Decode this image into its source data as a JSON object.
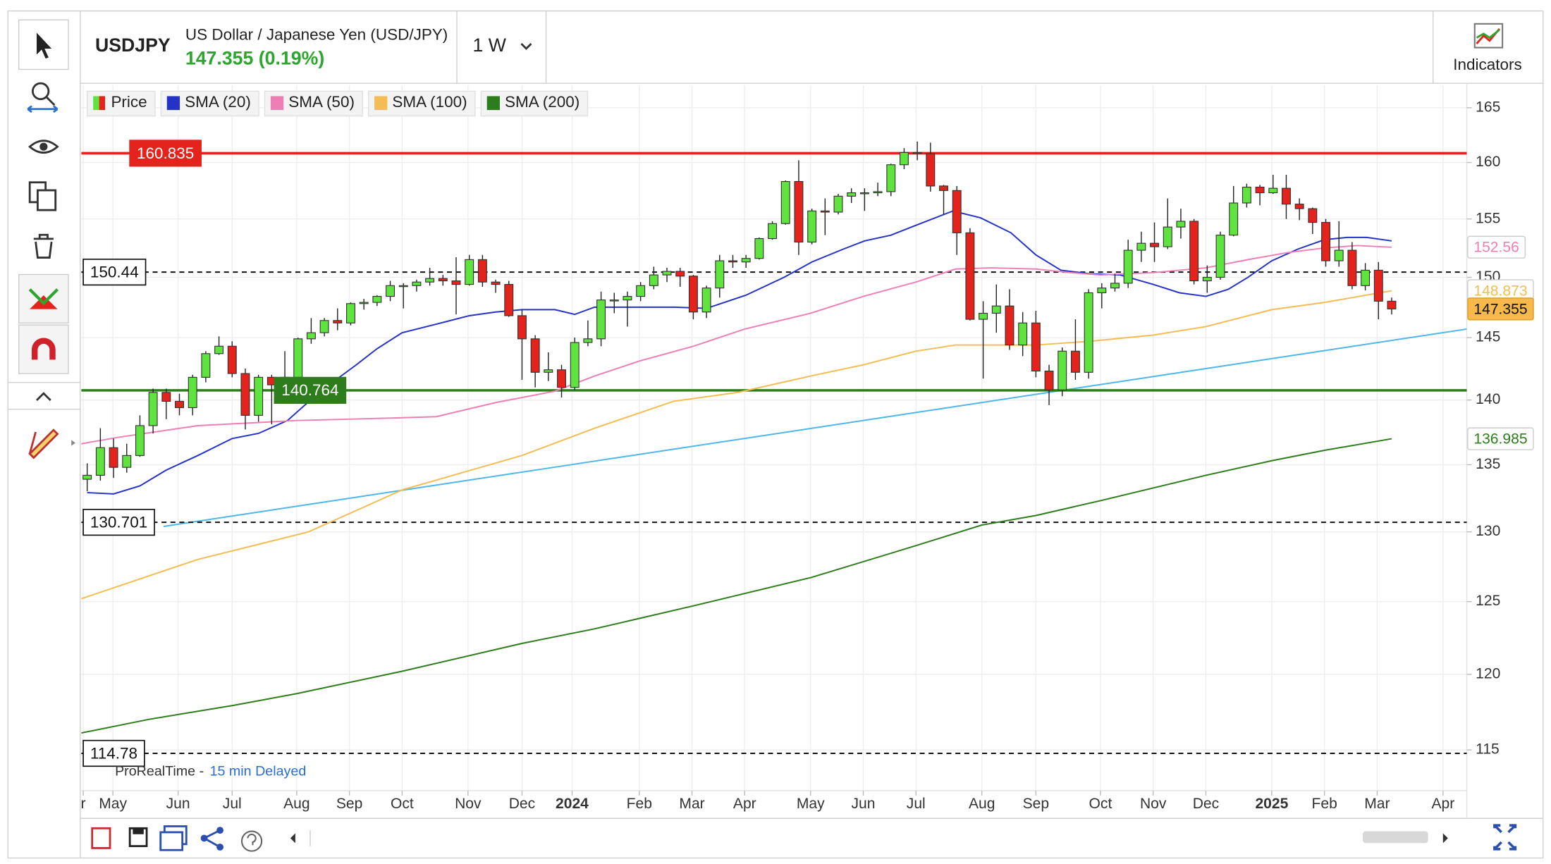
{
  "chart_data": {
    "type": "candlestick",
    "symbol": "USDJPY",
    "name": "US Dollar / Japanese Yen (USD/JPY)",
    "price_change": "147.355 (0.19%)",
    "interval": "1 W",
    "indicators_button": "Indicators",
    "price_legend": "Price",
    "source": "ProRealTime -",
    "delay": "15 min Delayed",
    "up_color": "#5fe33f",
    "down_color": "#e3231c",
    "log_scale": true,
    "grid": true,
    "ylim": [
      112.4,
      167.1
    ],
    "yticks": [
      115,
      120,
      125,
      130,
      135,
      140,
      145,
      150,
      155,
      160,
      165
    ],
    "xlim": [
      -0.45,
      104.7
    ],
    "xticks": [
      {
        "value": -0.3,
        "label": "r"
      },
      {
        "value": 1.95,
        "label": "May"
      },
      {
        "value": 6.9,
        "label": "Jun"
      },
      {
        "value": 11.0,
        "label": "Jul"
      },
      {
        "value": 15.9,
        "label": "Aug"
      },
      {
        "value": 19.9,
        "label": "Sep"
      },
      {
        "value": 23.9,
        "label": "Oct"
      },
      {
        "value": 28.9,
        "label": "Nov"
      },
      {
        "value": 33.0,
        "label": "Dec"
      },
      {
        "value": 36.8,
        "label": "2024"
      },
      {
        "value": 41.9,
        "label": "Feb"
      },
      {
        "value": 45.9,
        "label": "Mar"
      },
      {
        "value": 49.9,
        "label": "Apr"
      },
      {
        "value": 54.9,
        "label": "May"
      },
      {
        "value": 58.9,
        "label": "Jun"
      },
      {
        "value": 62.9,
        "label": "Jul"
      },
      {
        "value": 67.9,
        "label": "Aug"
      },
      {
        "value": 72.0,
        "label": "Sep"
      },
      {
        "value": 76.9,
        "label": "Oct"
      },
      {
        "value": 80.9,
        "label": "Nov"
      },
      {
        "value": 84.9,
        "label": "Dec"
      },
      {
        "value": 89.9,
        "label": "2025"
      },
      {
        "value": 93.9,
        "label": "Feb"
      },
      {
        "value": 97.9,
        "label": "Mar"
      },
      {
        "value": 102.9,
        "label": "Apr"
      }
    ],
    "open": [
      133.9,
      134.2,
      136.3,
      134.8,
      135.7,
      138.0,
      140.6,
      139.9,
      139.4,
      141.8,
      143.7,
      144.3,
      142.1,
      138.8,
      141.8,
      141.2,
      141.8,
      144.9,
      145.4,
      146.4,
      146.2,
      147.8,
      147.9,
      148.4,
      149.3,
      149.3,
      149.6,
      149.9,
      149.7,
      149.4,
      151.5,
      149.6,
      149.4,
      146.8,
      144.9,
      142.2,
      142.4,
      141.0,
      144.6,
      144.9,
      148.1,
      148.1,
      148.4,
      149.3,
      150.2,
      150.5,
      150.1,
      147.1,
      149.1,
      151.4,
      151.3,
      151.6,
      153.3,
      154.6,
      158.3,
      153.0,
      155.7,
      155.6,
      157.0,
      157.3,
      157.3,
      157.4,
      159.8,
      160.9,
      160.8,
      157.9,
      157.5,
      153.8,
      146.5,
      147.0,
      147.6,
      144.4,
      146.2,
      142.3,
      140.8,
      143.9,
      142.2,
      148.7,
      149.1,
      149.5,
      152.3,
      152.9,
      152.6,
      154.3,
      154.8,
      149.7,
      150.0,
      153.6,
      156.4,
      157.8,
      157.3,
      157.7,
      156.3,
      155.9,
      154.7,
      151.4,
      152.3,
      149.3,
      150.6,
      148.0
    ],
    "high": [
      135.1,
      137.8,
      137.0,
      136.6,
      138.8,
      140.9,
      140.9,
      140.5,
      142.0,
      143.9,
      145.1,
      144.7,
      142.5,
      142.0,
      142.0,
      143.9,
      145.0,
      146.6,
      146.6,
      147.4,
      147.9,
      148.2,
      148.5,
      149.7,
      149.5,
      149.8,
      150.8,
      150.2,
      151.7,
      151.9,
      151.9,
      149.8,
      149.7,
      147.3,
      145.2,
      143.8,
      142.8,
      145.0,
      146.4,
      148.8,
      148.7,
      148.8,
      149.6,
      150.9,
      150.8,
      150.8,
      150.2,
      149.3,
      151.9,
      151.9,
      151.9,
      153.4,
      154.8,
      158.4,
      160.2,
      155.9,
      156.8,
      157.2,
      157.7,
      157.7,
      158.2,
      159.9,
      161.3,
      161.9,
      161.8,
      158.0,
      157.9,
      154.2,
      148.0,
      149.4,
      149.0,
      147.1,
      147.2,
      142.8,
      144.2,
      146.5,
      149.0,
      149.5,
      150.3,
      153.2,
      153.9,
      154.7,
      156.8,
      155.9,
      155.0,
      151.0,
      153.9,
      157.9,
      158.1,
      158.0,
      158.9,
      158.9,
      156.8,
      156.0,
      155.0,
      154.8,
      153.0,
      151.2,
      151.3,
      148.3
    ],
    "low": [
      133.0,
      133.8,
      134.0,
      134.4,
      135.6,
      137.4,
      138.5,
      138.8,
      138.8,
      141.4,
      143.6,
      141.8,
      137.7,
      138.3,
      138.1,
      141.1,
      141.5,
      144.5,
      145.1,
      145.6,
      146.0,
      147.3,
      147.6,
      148.0,
      147.4,
      148.8,
      149.3,
      149.3,
      146.9,
      149.3,
      149.2,
      148.7,
      146.7,
      141.6,
      141.0,
      141.5,
      140.2,
      140.8,
      144.3,
      144.3,
      147.0,
      145.9,
      148.0,
      149.0,
      149.6,
      149.2,
      146.5,
      146.6,
      148.3,
      150.8,
      150.8,
      151.5,
      153.2,
      154.5,
      151.9,
      152.8,
      153.6,
      155.4,
      156.4,
      155.7,
      157.0,
      157.0,
      159.4,
      160.2,
      157.4,
      155.4,
      151.9,
      146.4,
      141.7,
      145.4,
      144.0,
      143.5,
      141.8,
      139.6,
      140.3,
      141.6,
      141.7,
      147.4,
      148.8,
      149.1,
      151.3,
      151.3,
      152.4,
      153.3,
      149.4,
      148.7,
      149.8,
      153.5,
      156.0,
      156.2,
      157.2,
      155.0,
      154.9,
      153.7,
      150.9,
      150.9,
      149.0,
      148.9,
      146.5,
      146.9
    ],
    "close": [
      134.2,
      136.3,
      134.8,
      135.7,
      138.0,
      140.6,
      139.9,
      139.4,
      141.8,
      143.7,
      144.3,
      142.1,
      138.8,
      141.8,
      141.2,
      141.8,
      144.9,
      145.4,
      146.4,
      146.2,
      147.8,
      147.9,
      148.4,
      149.3,
      149.3,
      149.6,
      149.9,
      149.7,
      149.4,
      151.5,
      149.6,
      149.4,
      146.8,
      144.9,
      142.2,
      142.4,
      141.0,
      144.6,
      144.9,
      148.1,
      148.1,
      148.4,
      149.3,
      150.2,
      150.5,
      150.1,
      147.1,
      149.1,
      151.4,
      151.3,
      151.6,
      153.3,
      154.6,
      158.3,
      153.0,
      155.7,
      155.6,
      157.0,
      157.3,
      157.3,
      157.4,
      159.8,
      160.9,
      160.8,
      157.9,
      157.5,
      153.8,
      146.5,
      147.0,
      147.6,
      144.4,
      146.2,
      142.3,
      140.8,
      143.9,
      142.2,
      148.7,
      149.1,
      149.5,
      152.3,
      152.9,
      152.6,
      154.3,
      154.8,
      149.7,
      150.0,
      153.6,
      156.4,
      157.8,
      157.3,
      157.7,
      156.3,
      155.9,
      154.7,
      151.4,
      152.3,
      149.3,
      150.6,
      148.0,
      147.355
    ],
    "last_badge_color": "#f6b94a",
    "series": [
      {
        "name": "SMA (20)",
        "color": "#2432c8",
        "badge": false,
        "x": [
          0,
          2,
          4,
          6,
          8.4,
          11,
          13,
          15.2,
          17.7,
          20.3,
          22,
          23.9,
          26.5,
          29,
          31,
          33,
          35.5,
          37,
          38.5,
          42,
          44.6,
          47,
          50,
          52.9,
          55,
          57.4,
          59,
          61,
          63,
          65.7,
          67.8,
          70.1,
          72,
          73.9,
          76.1,
          78.4,
          80.9,
          82.9,
          84.9,
          86.6,
          88.1,
          89.9,
          91.9,
          93.9,
          95.6,
          97.1,
          99
        ],
        "values": [
          132.9,
          132.8,
          133.4,
          134.6,
          135.7,
          137.0,
          137.4,
          138.4,
          140.7,
          142.7,
          144.1,
          145.4,
          146.1,
          146.8,
          147.1,
          147.3,
          147.3,
          146.9,
          147.5,
          147.5,
          147.5,
          147.4,
          148.5,
          150.0,
          151.3,
          152.4,
          153.1,
          153.6,
          154.5,
          155.7,
          155.1,
          153.8,
          151.9,
          150.6,
          150.3,
          150.2,
          149.4,
          148.7,
          148.4,
          149.0,
          150.0,
          151.4,
          152.4,
          153.2,
          153.4,
          153.4,
          153.1
        ]
      },
      {
        "name": "SMA (50)",
        "color": "#ee7fb5",
        "badge": true,
        "x": [
          -0.45,
          2.4,
          8.4,
          15.9,
          23.5,
          26.5,
          31,
          35.5,
          38.5,
          41.9,
          46,
          49.9,
          54.9,
          58.9,
          62.9,
          65.9,
          68.6,
          72,
          74.6,
          76.9,
          80.9,
          84.9,
          88.1,
          91.1,
          93.9,
          96.4,
          99
        ],
        "values": [
          136.6,
          137.1,
          138.0,
          138.4,
          138.6,
          138.7,
          139.8,
          140.7,
          141.9,
          143.1,
          144.3,
          145.7,
          147.0,
          148.4,
          149.6,
          150.7,
          150.8,
          150.7,
          150.4,
          150.2,
          150.4,
          150.8,
          151.5,
          152.1,
          152.5,
          152.7,
          152.56
        ]
      },
      {
        "name": "SMA (100)",
        "color": "#f4bc52",
        "badge": true,
        "x": [
          -0.45,
          8.4,
          16.8,
          23.9,
          33,
          38.5,
          44.5,
          49.4,
          54.9,
          58.9,
          62.9,
          65.9,
          72,
          76.1,
          80.9,
          84.9,
          89.9,
          93.9,
          99
        ],
        "values": [
          125.2,
          128.0,
          130.0,
          133.1,
          135.7,
          137.8,
          139.9,
          140.6,
          141.9,
          142.8,
          143.9,
          144.4,
          144.4,
          144.7,
          145.2,
          145.9,
          147.3,
          147.9,
          148.873
        ]
      },
      {
        "name": "SMA (200)",
        "color": "#2e7d1c",
        "badge": true,
        "x": [
          -0.45,
          4.7,
          11,
          15.9,
          23.9,
          33,
          38.5,
          46,
          54.9,
          62.9,
          67.9,
          72,
          76.9,
          84.9,
          89.9,
          93.9,
          99
        ],
        "values": [
          116.1,
          117.0,
          117.9,
          118.7,
          120.2,
          122.1,
          123.1,
          124.7,
          126.7,
          129.0,
          130.5,
          131.2,
          132.3,
          134.2,
          135.3,
          136.1,
          136.985
        ]
      }
    ],
    "trendline": {
      "color": "#4db6ea",
      "x": [
        5.8,
        104.7
      ],
      "values": [
        130.4,
        145.7
      ]
    },
    "levels": [
      {
        "value": 160.835,
        "color": "#e3231c",
        "style": "solid",
        "label_fill": "#e3231c"
      },
      {
        "value": 140.764,
        "color": "#2e7d1c",
        "style": "solid",
        "label_fill": "#2e7d1c"
      },
      {
        "value": 150.44,
        "color": "#111111",
        "style": "dashed",
        "label_fill": "#ffffff"
      },
      {
        "value": 130.701,
        "color": "#111111",
        "style": "dashed",
        "label_fill": "#ffffff"
      },
      {
        "value": 114.78,
        "color": "#111111",
        "style": "dashed",
        "label_fill": "#ffffff"
      }
    ]
  }
}
